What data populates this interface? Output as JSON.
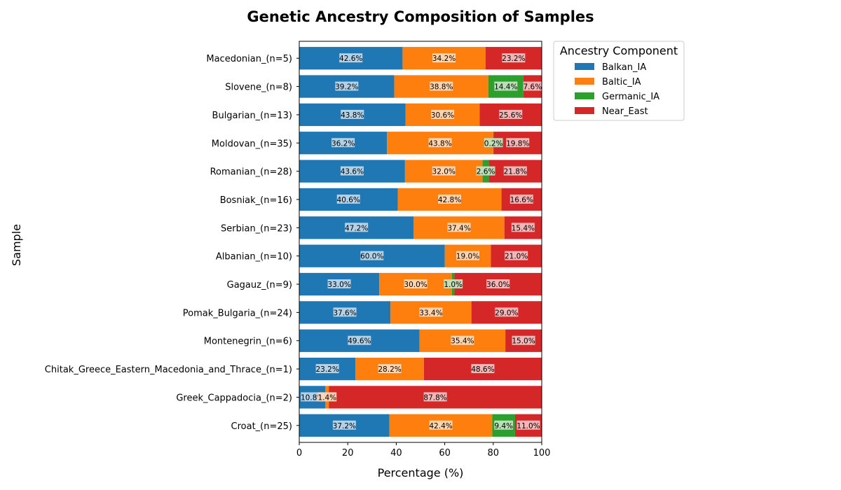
{
  "chart_data": {
    "type": "bar",
    "orientation": "horizontal",
    "stacked": true,
    "title": "Genetic Ancestry Composition of Samples",
    "xlabel": "Percentage (%)",
    "ylabel": "Sample",
    "xlim": [
      0,
      100
    ],
    "xticks": [
      0,
      20,
      40,
      60,
      80,
      100
    ],
    "grid": false,
    "legend": {
      "title": "Ancestry Component",
      "placement": "outside-top-right"
    },
    "categories": [
      "Macedonian_(n=5)",
      "Slovene_(n=8)",
      "Bulgarian_(n=13)",
      "Moldovan_(n=35)",
      "Romanian_(n=28)",
      "Bosniak_(n=16)",
      "Serbian_(n=23)",
      "Albanian_(n=10)",
      "Gagauz_(n=9)",
      "Pomak_Bulgaria_(n=24)",
      "Montenegrin_(n=6)",
      "Chitak_Greece_Eastern_Macedonia_and_Thrace_(n=1)",
      "Greek_Cappadocia_(n=2)",
      "Croat_(n=25)"
    ],
    "series": [
      {
        "name": "Balkan_IA",
        "color": "#1f77b4",
        "values": [
          42.6,
          39.2,
          43.8,
          36.2,
          43.6,
          40.6,
          47.2,
          60.0,
          33.0,
          37.6,
          49.6,
          23.2,
          10.8,
          37.2
        ]
      },
      {
        "name": "Baltic_IA",
        "color": "#ff7f0e",
        "values": [
          34.2,
          38.8,
          30.6,
          43.8,
          32.0,
          42.8,
          37.4,
          19.0,
          30.0,
          33.4,
          35.4,
          28.2,
          1.4,
          42.4
        ]
      },
      {
        "name": "Germanic_IA",
        "color": "#2ca02c",
        "values": [
          0,
          14.4,
          0,
          0.2,
          2.6,
          0,
          0,
          0,
          1.0,
          0,
          0,
          0,
          0,
          9.4
        ]
      },
      {
        "name": "Near_East",
        "color": "#d62728",
        "values": [
          23.2,
          7.6,
          25.6,
          19.8,
          21.8,
          16.6,
          15.4,
          21.0,
          36.0,
          29.0,
          15.0,
          48.6,
          87.8,
          11.0
        ]
      }
    ],
    "label_format": "{v}%"
  }
}
